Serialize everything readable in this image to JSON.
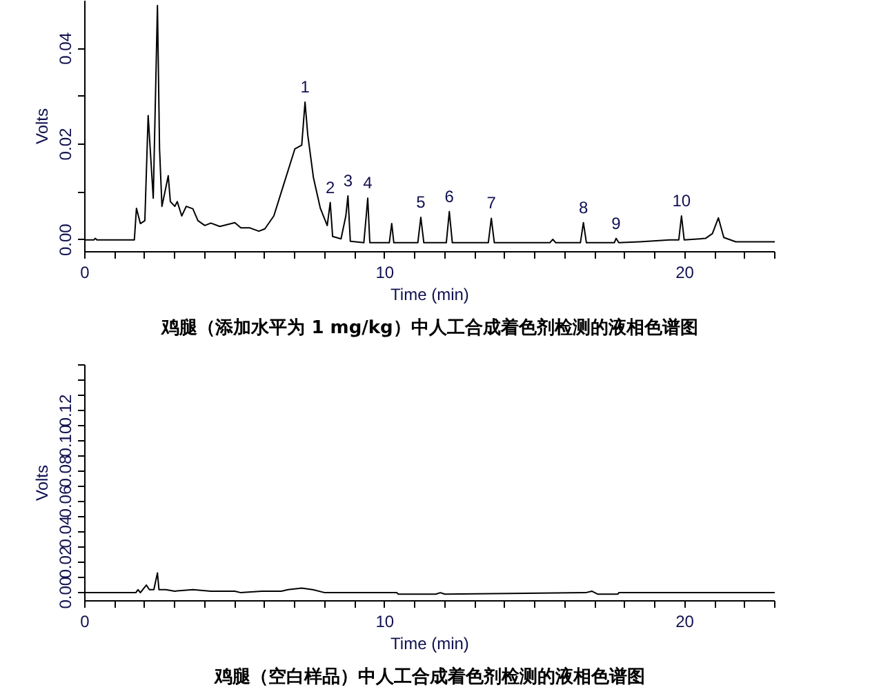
{
  "chart_data": [
    {
      "type": "line",
      "title": "鸡腿（添加水平为 1 mg/kg）中人工合成着色剂检测的液相色谱图",
      "xlabel": "Time (min)",
      "ylabel": "Volts",
      "xlim": [
        0,
        23
      ],
      "ylim": [
        -0.0025,
        0.05
      ],
      "xticks": [
        0,
        {
          "value": 1,
          "label": null
        },
        {
          "value": 2,
          "label": null
        },
        {
          "value": 3,
          "label": null
        },
        {
          "value": 4,
          "label": null
        },
        {
          "value": 5,
          "label": null
        },
        {
          "value": 6,
          "label": null
        },
        {
          "value": 7,
          "label": null
        },
        {
          "value": 8,
          "label": null
        },
        {
          "value": 9,
          "label": null
        },
        10,
        {
          "value": 11,
          "label": null
        },
        {
          "value": 12,
          "label": null
        },
        {
          "value": 13,
          "label": null
        },
        {
          "value": 14,
          "label": null
        },
        {
          "value": 15,
          "label": null
        },
        {
          "value": 16,
          "label": null
        },
        {
          "value": 17,
          "label": null
        },
        {
          "value": 18,
          "label": null
        },
        {
          "value": 19,
          "label": null
        },
        20,
        {
          "value": 21,
          "label": null
        },
        {
          "value": 22,
          "label": null
        },
        {
          "value": 23,
          "label": null
        }
      ],
      "yticks": [
        {
          "value": 0,
          "label": "0.00"
        },
        {
          "value": 0.01,
          "label": null
        },
        {
          "value": 0.02,
          "label": "0.02"
        },
        {
          "value": 0.03,
          "label": null
        },
        {
          "value": 0.04,
          "label": "0.04"
        }
      ],
      "series": [
        {
          "color": "#000000",
          "x": [
            0,
            0.3,
            0.35,
            0.4,
            1.65,
            1.72,
            1.85,
            2.0,
            2.11,
            2.28,
            2.42,
            2.49,
            2.57,
            2.78,
            2.85,
            3.0,
            3.08,
            3.23,
            3.38,
            3.6,
            3.77,
            4.0,
            4.2,
            4.5,
            5.0,
            5.2,
            5.5,
            5.8,
            6.0,
            6.3,
            6.6,
            6.85,
            7.0,
            7.23,
            7.34,
            7.43,
            7.62,
            7.85,
            8.08,
            8.18,
            8.26,
            8.54,
            8.7,
            8.77,
            8.85,
            9.3,
            9.38,
            9.43,
            9.5,
            10.15,
            10.23,
            10.3,
            11.1,
            11.2,
            11.3,
            12.05,
            12.15,
            12.25,
            13.45,
            13.55,
            13.65,
            15.5,
            15.6,
            15.7,
            16.52,
            16.62,
            16.72,
            17.65,
            17.71,
            17.8,
            18.5,
            19.5,
            19.8,
            19.89,
            19.98,
            20.69,
            20.92,
            21.12,
            21.3,
            21.7,
            23.0
          ],
          "values": [
            0,
            0,
            0.0003,
            0,
            0,
            0.0066,
            0.0034,
            0.004,
            0.026,
            0.0087,
            0.049,
            0.019,
            0.007,
            0.0134,
            0.008,
            0.007,
            0.008,
            0.005,
            0.007,
            0.0065,
            0.004,
            0.003,
            0.0035,
            0.0028,
            0.0036,
            0.0025,
            0.0025,
            0.0018,
            0.0023,
            0.005,
            0.011,
            0.016,
            0.019,
            0.0198,
            0.0288,
            0.022,
            0.013,
            0.0066,
            0.003,
            0.0078,
            0.0007,
            0.0002,
            0.005,
            0.0092,
            -0.0003,
            -0.0006,
            0.005,
            0.0087,
            -0.0006,
            -0.0006,
            0.0034,
            -0.0006,
            -0.0006,
            0.0047,
            -0.0006,
            -0.0006,
            0.0059,
            -0.0006,
            -0.0006,
            0.0045,
            -0.0006,
            -0.0006,
            0.0001,
            -0.0006,
            -0.0006,
            0.0036,
            -0.0006,
            -0.0006,
            0.0003,
            -0.0006,
            -0.0004,
            0,
            0,
            0.005,
            0,
            0.0003,
            0.0013,
            0.0046,
            0.0005,
            -0.0004,
            -0.0004
          ]
        }
      ],
      "annotations": [
        {
          "text": "1",
          "x": 7.34,
          "y": 0.0288
        },
        {
          "text": "2",
          "x": 8.18,
          "y": 0.0078
        },
        {
          "text": "3",
          "x": 8.77,
          "y": 0.0092
        },
        {
          "text": "4",
          "x": 9.43,
          "y": 0.0087
        },
        {
          "text": "5",
          "x": 11.2,
          "y": 0.0047
        },
        {
          "text": "6",
          "x": 12.15,
          "y": 0.0059
        },
        {
          "text": "7",
          "x": 13.55,
          "y": 0.0045
        },
        {
          "text": "8",
          "x": 16.62,
          "y": 0.0036
        },
        {
          "text": "9",
          "x": 17.71,
          "y": 0.0003
        },
        {
          "text": "10",
          "x": 19.89,
          "y": 0.005
        }
      ]
    },
    {
      "type": "line",
      "title": "鸡腿（空白样品）中人工合成着色剂检测的液相色谱图",
      "xlabel": "Time (min)",
      "ylabel": "Volts",
      "xlim": [
        0,
        23
      ],
      "ylim": [
        -0.0054,
        0.15
      ],
      "xticks": [
        0,
        {
          "value": 1,
          "label": null
        },
        {
          "value": 2,
          "label": null
        },
        {
          "value": 3,
          "label": null
        },
        {
          "value": 4,
          "label": null
        },
        {
          "value": 5,
          "label": null
        },
        {
          "value": 6,
          "label": null
        },
        {
          "value": 7,
          "label": null
        },
        {
          "value": 8,
          "label": null
        },
        {
          "value": 9,
          "label": null
        },
        10,
        {
          "value": 11,
          "label": null
        },
        {
          "value": 12,
          "label": null
        },
        {
          "value": 13,
          "label": null
        },
        {
          "value": 14,
          "label": null
        },
        {
          "value": 15,
          "label": null
        },
        {
          "value": 16,
          "label": null
        },
        {
          "value": 17,
          "label": null
        },
        {
          "value": 18,
          "label": null
        },
        {
          "value": 19,
          "label": null
        },
        20,
        {
          "value": 21,
          "label": null
        },
        {
          "value": 22,
          "label": null
        },
        {
          "value": 23,
          "label": null
        }
      ],
      "yticks": [
        {
          "value": 0,
          "label": "0.00"
        },
        {
          "value": 0.01,
          "label": null
        },
        {
          "value": 0.02,
          "label": "0.02"
        },
        {
          "value": 0.03,
          "label": null
        },
        {
          "value": 0.04,
          "label": "0.04"
        },
        {
          "value": 0.05,
          "label": null
        },
        {
          "value": 0.06,
          "label": "0.06"
        },
        {
          "value": 0.07,
          "label": null
        },
        {
          "value": 0.08,
          "label": "0.08"
        },
        {
          "value": 0.09,
          "label": null
        },
        {
          "value": 0.1,
          "label": "0.10"
        },
        {
          "value": 0.11,
          "label": null
        },
        {
          "value": 0.12,
          "label": "0.12"
        },
        {
          "value": 0.13,
          "label": null
        },
        {
          "value": 0.14,
          "label": null
        },
        {
          "value": 0.15,
          "label": null
        }
      ],
      "series": [
        {
          "color": "#000000",
          "x": [
            0,
            1.7,
            1.77,
            1.85,
            2.05,
            2.15,
            2.3,
            2.42,
            2.47,
            2.7,
            3.0,
            3.6,
            4.2,
            5.0,
            5.2,
            5.9,
            6.55,
            6.77,
            7.23,
            7.6,
            8.0,
            10.4,
            10.45,
            11.7,
            11.85,
            12.0,
            16.7,
            16.9,
            17.1,
            17.77,
            17.8,
            23.0
          ],
          "values": [
            0,
            0,
            0.002,
            0,
            0.005,
            0.002,
            0.002,
            0.013,
            0.002,
            0.002,
            0.001,
            0.002,
            0.001,
            0.001,
            0,
            0.001,
            0.001,
            0.002,
            0.003,
            0.002,
            0,
            0,
            -0.001,
            -0.001,
            0,
            -0.001,
            0,
            0.001,
            -0.001,
            -0.001,
            0,
            0
          ]
        }
      ]
    }
  ]
}
